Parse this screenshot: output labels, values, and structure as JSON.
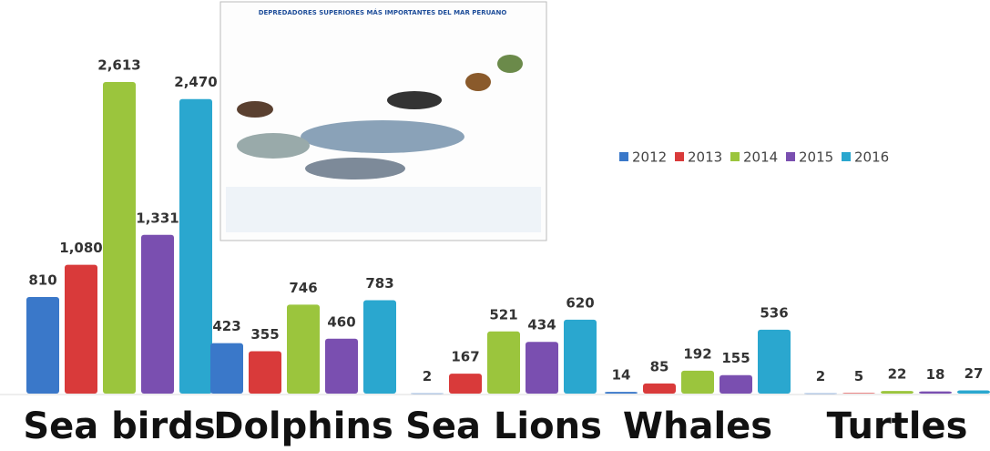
{
  "chart_data": {
    "type": "bar",
    "categories": [
      "Sea birds",
      "Dolphins",
      "Sea Lions",
      "Whales",
      "Turtles"
    ],
    "series": [
      {
        "name": "2012",
        "color": "#3a78c9",
        "values": [
          810,
          423,
          2,
          14,
          2
        ],
        "value_labels": [
          "810",
          "423",
          "2",
          "14",
          "2"
        ]
      },
      {
        "name": "2013",
        "color": "#d93a3a",
        "values": [
          1080,
          355,
          167,
          85,
          5
        ],
        "value_labels": [
          "1,080",
          "355",
          "167",
          "85",
          "5"
        ]
      },
      {
        "name": "2014",
        "color": "#9bc53d",
        "values": [
          2613,
          746,
          521,
          192,
          22
        ],
        "value_labels": [
          "2,613",
          "746",
          "521",
          "192",
          "22"
        ]
      },
      {
        "name": "2015",
        "color": "#7a4fb0",
        "values": [
          1331,
          460,
          434,
          155,
          18
        ],
        "value_labels": [
          "1,331",
          "460",
          "434",
          "155",
          "18"
        ]
      },
      {
        "name": "2016",
        "color": "#2aa7cf",
        "values": [
          2470,
          783,
          620,
          536,
          27
        ],
        "value_labels": [
          "2,470",
          "783",
          "620",
          "536",
          "27"
        ]
      }
    ],
    "annotations": [
      "DEPREDADORES SUPERIORES MÁS IMPORTANTES DEL MAR PERUANO"
    ],
    "legend": "right"
  }
}
